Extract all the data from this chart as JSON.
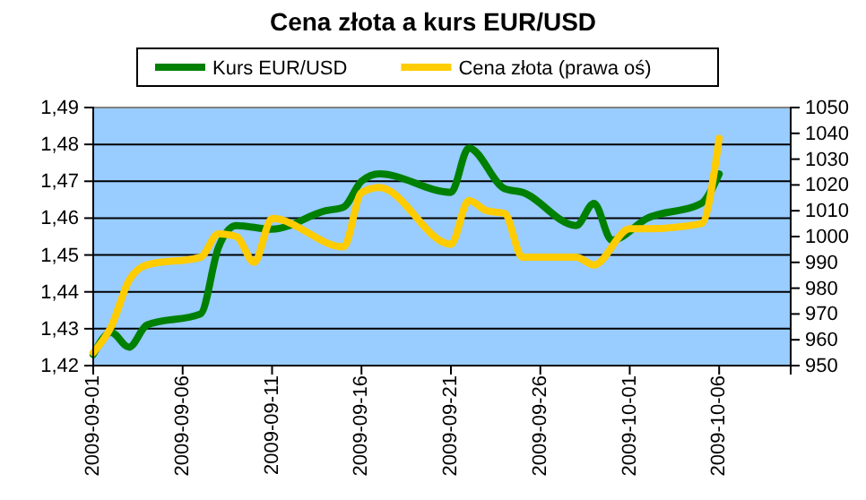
{
  "chart_data": {
    "type": "line",
    "title": "Cena złota a kurs EUR/USD",
    "xlim": [
      "2009-09-01",
      "2009-10-10"
    ],
    "xticks": [
      "2009-09-01",
      "2009-09-06",
      "2009-09-11",
      "2009-09-16",
      "2009-09-21",
      "2009-09-26",
      "2009-10-01",
      "2009-10-06"
    ],
    "ylim": [
      1.42,
      1.49
    ],
    "yticks": [
      {
        "value": 1.42,
        "label": "1,42"
      },
      {
        "value": 1.43,
        "label": "1,43"
      },
      {
        "value": 1.44,
        "label": "1,44"
      },
      {
        "value": 1.45,
        "label": "1,45"
      },
      {
        "value": 1.46,
        "label": "1,46"
      },
      {
        "value": 1.47,
        "label": "1,47"
      },
      {
        "value": 1.48,
        "label": "1,48"
      },
      {
        "value": 1.49,
        "label": "1,49"
      }
    ],
    "y2lim": [
      950,
      1050
    ],
    "y2ticks": [
      950,
      960,
      970,
      980,
      990,
      1000,
      1010,
      1020,
      1030,
      1040,
      1050
    ],
    "grid": "y",
    "legend": "top",
    "marker": "none",
    "line_style": "solid",
    "series": [
      {
        "name": "Kurs EUR/USD",
        "color": "#008000",
        "x": [
          "2009-09-01",
          "2009-09-02",
          "2009-09-03",
          "2009-09-04",
          "2009-09-07",
          "2009-09-08",
          "2009-09-09",
          "2009-09-11",
          "2009-09-14",
          "2009-09-15",
          "2009-09-16",
          "2009-09-17",
          "2009-09-21",
          "2009-09-22",
          "2009-09-24",
          "2009-09-25",
          "2009-09-28",
          "2009-09-29",
          "2009-09-30",
          "2009-10-02",
          "2009-10-05",
          "2009-10-06"
        ],
        "values": [
          1.423,
          1.429,
          1.425,
          1.431,
          1.434,
          1.452,
          1.458,
          1.457,
          1.462,
          1.463,
          1.47,
          1.472,
          1.467,
          1.479,
          1.468,
          1.467,
          1.458,
          1.464,
          1.454,
          1.46,
          1.464,
          1.472
        ]
      },
      {
        "name": "Cena złota (prawa oś)",
        "color": "#ffcc00",
        "axis": "y2",
        "x": [
          "2009-09-01",
          "2009-09-02",
          "2009-09-03",
          "2009-09-04",
          "2009-09-07",
          "2009-09-08",
          "2009-09-09",
          "2009-09-10",
          "2009-09-11",
          "2009-09-15",
          "2009-09-16",
          "2009-09-17",
          "2009-09-21",
          "2009-09-22",
          "2009-09-23",
          "2009-09-24",
          "2009-09-25",
          "2009-09-28",
          "2009-09-29",
          "2009-10-01",
          "2009-10-02",
          "2009-10-05",
          "2009-10-06"
        ],
        "values": [
          955,
          965,
          983,
          989,
          992,
          1001,
          1000,
          990,
          1007,
          996,
          1017,
          1019,
          997,
          1014,
          1010,
          1009,
          992,
          992,
          989,
          1003,
          1003,
          1005,
          1038
        ]
      }
    ]
  }
}
